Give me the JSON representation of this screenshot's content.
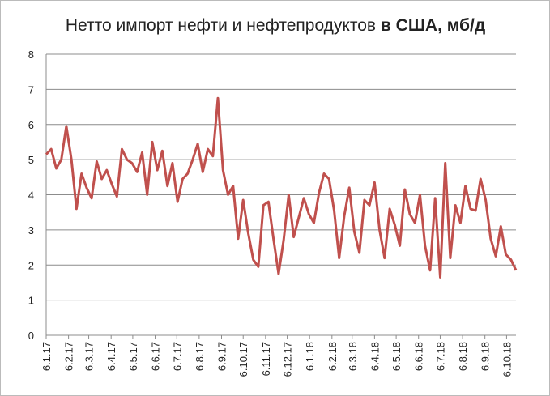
{
  "chart_data": {
    "type": "line",
    "title": [
      "Нетто импорт нефти и нефтепродуктов",
      "в США, мб/д"
    ],
    "x": [
      "2017-01-06",
      "2017-01-13",
      "2017-01-20",
      "2017-01-27",
      "2017-02-03",
      "2017-02-10",
      "2017-02-17",
      "2017-02-24",
      "2017-03-03",
      "2017-03-10",
      "2017-03-17",
      "2017-03-24",
      "2017-03-31",
      "2017-04-07",
      "2017-04-14",
      "2017-04-21",
      "2017-04-28",
      "2017-05-05",
      "2017-05-12",
      "2017-05-19",
      "2017-05-26",
      "2017-06-02",
      "2017-06-09",
      "2017-06-16",
      "2017-06-23",
      "2017-06-30",
      "2017-07-07",
      "2017-07-14",
      "2017-07-21",
      "2017-07-28",
      "2017-08-04",
      "2017-08-11",
      "2017-08-18",
      "2017-08-25",
      "2017-09-01",
      "2017-09-08",
      "2017-09-15",
      "2017-09-22",
      "2017-09-29",
      "2017-10-06",
      "2017-10-13",
      "2017-10-20",
      "2017-10-27",
      "2017-11-03",
      "2017-11-10",
      "2017-11-17",
      "2017-11-24",
      "2017-12-01",
      "2017-12-08",
      "2017-12-15",
      "2017-12-22",
      "2017-12-29",
      "2018-01-05",
      "2018-01-12",
      "2018-01-19",
      "2018-01-26",
      "2018-02-02",
      "2018-02-09",
      "2018-02-16",
      "2018-02-23",
      "2018-03-02",
      "2018-03-09",
      "2018-03-16",
      "2018-03-23",
      "2018-03-30",
      "2018-04-06",
      "2018-04-13",
      "2018-04-20",
      "2018-04-27",
      "2018-05-04",
      "2018-05-11",
      "2018-05-18",
      "2018-05-25",
      "2018-06-01",
      "2018-06-08",
      "2018-06-15",
      "2018-06-22",
      "2018-06-29",
      "2018-07-06",
      "2018-07-13",
      "2018-07-20",
      "2018-07-27",
      "2018-08-03",
      "2018-08-10",
      "2018-08-17",
      "2018-08-24",
      "2018-08-31",
      "2018-09-07",
      "2018-09-14",
      "2018-09-21",
      "2018-09-28",
      "2018-10-05",
      "2018-10-12",
      "2018-10-19"
    ],
    "values": [
      5.15,
      5.3,
      4.75,
      5.0,
      5.95,
      5.0,
      3.6,
      4.6,
      4.2,
      3.9,
      4.95,
      4.45,
      4.7,
      4.3,
      3.95,
      5.3,
      5.0,
      4.9,
      4.65,
      5.2,
      4.0,
      5.5,
      4.7,
      5.25,
      4.25,
      4.9,
      3.8,
      4.45,
      4.6,
      5.0,
      5.45,
      4.65,
      5.3,
      5.1,
      6.75,
      4.7,
      4.0,
      4.25,
      2.75,
      3.85,
      2.9,
      2.15,
      1.95,
      3.7,
      3.8,
      2.75,
      1.75,
      2.7,
      4.0,
      2.8,
      3.35,
      3.9,
      3.45,
      3.2,
      4.05,
      4.6,
      4.45,
      3.55,
      2.2,
      3.4,
      4.2,
      2.95,
      2.35,
      3.85,
      3.7,
      4.35,
      3.0,
      2.2,
      3.6,
      3.15,
      2.55,
      4.15,
      3.45,
      3.2,
      4.0,
      2.55,
      1.85,
      3.9,
      1.65,
      4.9,
      2.2,
      3.7,
      3.2,
      4.25,
      3.6,
      3.55,
      4.45,
      3.85,
      2.75,
      2.25,
      3.1,
      2.3,
      2.15,
      1.85
    ],
    "color": "#c0504d",
    "xlim": [
      "2017-01-06",
      "2018-10-19"
    ],
    "xticks": [
      {
        "value": "2017-01-06",
        "label": "6.1.17"
      },
      {
        "value": "2017-02-06",
        "label": "6.2.17"
      },
      {
        "value": "2017-03-06",
        "label": "6.3.17"
      },
      {
        "value": "2017-04-06",
        "label": "6.4.17"
      },
      {
        "value": "2017-05-06",
        "label": "6.5.17"
      },
      {
        "value": "2017-06-06",
        "label": "6.6.17"
      },
      {
        "value": "2017-07-06",
        "label": "6.7.17"
      },
      {
        "value": "2017-08-06",
        "label": "6.8.17"
      },
      {
        "value": "2017-09-06",
        "label": "6.9.17"
      },
      {
        "value": "2017-10-06",
        "label": "6.10.17"
      },
      {
        "value": "2017-11-06",
        "label": "6.11.17"
      },
      {
        "value": "2017-12-06",
        "label": "6.12.17"
      },
      {
        "value": "2018-01-06",
        "label": "6.1.18"
      },
      {
        "value": "2018-02-06",
        "label": "6.2.18"
      },
      {
        "value": "2018-03-06",
        "label": "6.3.18"
      },
      {
        "value": "2018-04-06",
        "label": "6.4.18"
      },
      {
        "value": "2018-05-06",
        "label": "6.5.18"
      },
      {
        "value": "2018-06-06",
        "label": "6.6.18"
      },
      {
        "value": "2018-07-06",
        "label": "6.7.18"
      },
      {
        "value": "2018-08-06",
        "label": "6.8.18"
      },
      {
        "value": "2018-09-06",
        "label": "6.9.18"
      },
      {
        "value": "2018-10-06",
        "label": "6.10.18"
      }
    ],
    "ylim": [
      0,
      8
    ],
    "yticks": [
      0,
      1,
      2,
      3,
      4,
      5,
      6,
      7,
      8
    ],
    "grid": true
  }
}
